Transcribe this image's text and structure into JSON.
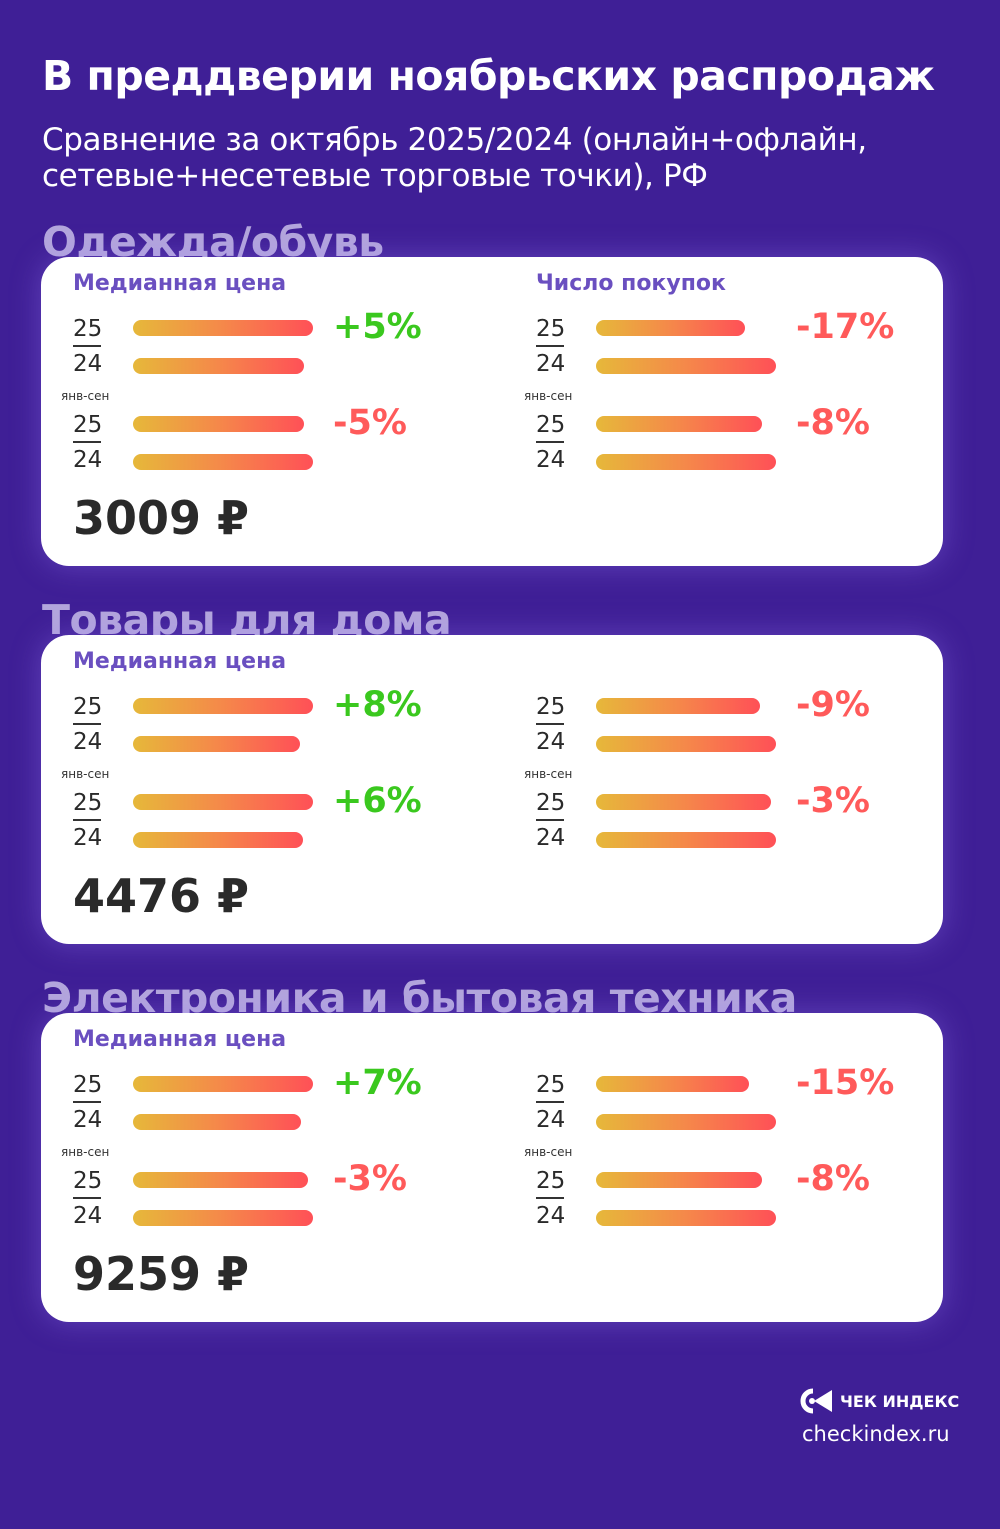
{
  "header": {
    "title": "В преддверии ноябрьских распродаж",
    "subtitle": "Сравнение за октябрь 2025/2024 (онлайн+офлайн, сетевые+несетевые торговые точки), РФ"
  },
  "colors": {
    "background": "#3f1f96",
    "positive": "#3ac81e",
    "negative": "#ff5a5a",
    "bar_start": "#e6b83a",
    "bar_end": "#ff5057",
    "section_title": "#b3a6dc",
    "metric_label": "#6a4fc0"
  },
  "sections": [
    {
      "title": "Одежда/обувь",
      "price": "3009 ₽",
      "left": {
        "label": "Медианная цена",
        "groups": [
          {
            "period": "",
            "top": "25",
            "bottom": "24",
            "change": "+5%",
            "value": 5
          },
          {
            "period": "янв-сен",
            "top": "25",
            "bottom": "24",
            "change": "-5%",
            "value": -5
          }
        ]
      },
      "right": {
        "label": "Число покупок",
        "groups": [
          {
            "period": "",
            "top": "25",
            "bottom": "24",
            "change": "-17%",
            "value": -17
          },
          {
            "period": "янв-сен",
            "top": "25",
            "bottom": "24",
            "change": "-8%",
            "value": -8
          }
        ]
      }
    },
    {
      "title": "Товары для дома",
      "price": "4476 ₽",
      "left": {
        "label": "Медианная цена",
        "groups": [
          {
            "period": "",
            "top": "25",
            "bottom": "24",
            "change": "+8%",
            "value": 8
          },
          {
            "period": "янв-сен",
            "top": "25",
            "bottom": "24",
            "change": "+6%",
            "value": 6
          }
        ]
      },
      "right": {
        "label": "",
        "groups": [
          {
            "period": "",
            "top": "25",
            "bottom": "24",
            "change": "-9%",
            "value": -9
          },
          {
            "period": "янв-сен",
            "top": "25",
            "bottom": "24",
            "change": "-3%",
            "value": -3
          }
        ]
      }
    },
    {
      "title": "Электроника и бытовая техника",
      "price": "9259 ₽",
      "left": {
        "label": "Медианная цена",
        "groups": [
          {
            "period": "",
            "top": "25",
            "bottom": "24",
            "change": "+7%",
            "value": 7
          },
          {
            "period": "янв-сен",
            "top": "25",
            "bottom": "24",
            "change": "-3%",
            "value": -3
          }
        ]
      },
      "right": {
        "label": "",
        "groups": [
          {
            "period": "",
            "top": "25",
            "bottom": "24",
            "change": "-15%",
            "value": -15
          },
          {
            "period": "янв-сен",
            "top": "25",
            "bottom": "24",
            "change": "-8%",
            "value": -8
          }
        ]
      }
    }
  ],
  "chart_data": {
    "type": "bar",
    "categories": [
      "Одежда/обувь",
      "Товары для дома",
      "Электроника и бытовая техника"
    ],
    "series": [
      {
        "name": "Медианная цена",
        "values": [
          5,
          8,
          7
        ]
      },
      {
        "name": "Медианная цена янв-сен",
        "values": [
          -5,
          6,
          -3
        ]
      },
      {
        "name": "Число покупок",
        "values": [
          -17,
          -9,
          -15
        ]
      },
      {
        "name": "Число покупок янв-сен",
        "values": [
          -8,
          -3,
          -8
        ]
      }
    ],
    "unit": "%"
  },
  "footer": {
    "logo_text": "ЧЕК ИНДЕКС",
    "site": "checkindex.ru"
  }
}
